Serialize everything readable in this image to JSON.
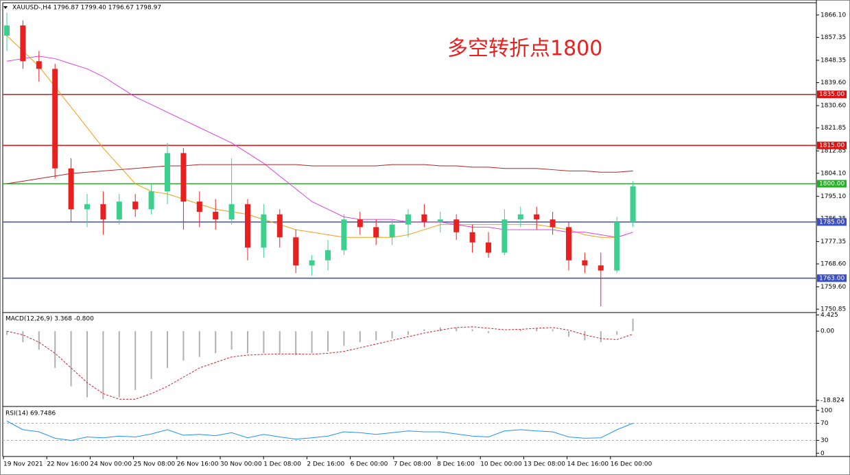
{
  "chart_data": [
    {
      "type": "candlestick",
      "header": "XAUUSD-,H4  1796.87 1799.40 1796.67 1798.97",
      "annotation": "多空转折点1800",
      "open": [
        1858,
        1862,
        1848,
        1845,
        1806,
        1790,
        1792,
        1786,
        1793,
        1790,
        1797,
        1812,
        1793,
        1789,
        1786,
        1792,
        1775,
        1788,
        1779,
        1768,
        1770,
        1774,
        1786,
        1783,
        1779,
        1784,
        1788,
        1785,
        1786,
        1781,
        1777,
        1773,
        1786,
        1788,
        1786,
        1783,
        1770,
        1768,
        1766,
        1785
      ],
      "high": [
        1867,
        1864,
        1852,
        1847,
        1810,
        1796,
        1797,
        1796,
        1796,
        1800,
        1816,
        1814,
        1797,
        1794,
        1810,
        1794,
        1792,
        1790,
        1782,
        1772,
        1778,
        1788,
        1789,
        1786,
        1786,
        1790,
        1792,
        1789,
        1788,
        1784,
        1781,
        1790,
        1791,
        1791,
        1789,
        1785,
        1773,
        1773,
        1787,
        1801
      ],
      "low": [
        1852,
        1845,
        1840,
        1802,
        1785,
        1783,
        1780,
        1784,
        1787,
        1788,
        1792,
        1782,
        1783,
        1782,
        1784,
        1770,
        1771,
        1775,
        1765,
        1764,
        1766,
        1772,
        1780,
        1776,
        1776,
        1779,
        1783,
        1781,
        1778,
        1773,
        1771,
        1772,
        1783,
        1782,
        1780,
        1766,
        1765,
        1752,
        1765,
        1783
      ],
      "close": [
        1862,
        1848,
        1845,
        1806,
        1790,
        1792,
        1786,
        1793,
        1790,
        1797,
        1812,
        1793,
        1789,
        1786,
        1792,
        1775,
        1788,
        1779,
        1768,
        1770,
        1774,
        1786,
        1783,
        1779,
        1784,
        1788,
        1785,
        1786,
        1781,
        1777,
        1773,
        1786,
        1788,
        1786,
        1783,
        1770,
        1768,
        1766,
        1785,
        1799
      ],
      "up_color": "#3ccf8e",
      "down_color": "#e8201f",
      "series": [
        {
          "color": "#f39c12",
          "values": [
            1858,
            1852,
            1846,
            1838,
            1830,
            1822,
            1814,
            1807,
            1800,
            1797,
            1796,
            1794,
            1792,
            1790,
            1789,
            1788,
            1786,
            1784,
            1782,
            1781,
            1780,
            1779,
            1779,
            1779,
            1779,
            1780,
            1782,
            1784,
            1784,
            1784,
            1784,
            1784,
            1784,
            1784,
            1783,
            1782,
            1780,
            1779,
            1779,
            1781
          ]
        },
        {
          "color": "#e040e0",
          "values": [
            1848,
            1849,
            1850,
            1849,
            1847,
            1845,
            1842,
            1838,
            1834,
            1831,
            1828,
            1825,
            1822,
            1819,
            1816,
            1812,
            1808,
            1803,
            1798,
            1793,
            1790,
            1787,
            1786,
            1786,
            1786,
            1785,
            1785,
            1785,
            1784,
            1783,
            1783,
            1782,
            1782,
            1782,
            1782,
            1781,
            1781,
            1780,
            1779,
            1781
          ]
        },
        {
          "color": "#b22222",
          "values": [
            1800,
            1801,
            1802,
            1803,
            1804,
            1804.5,
            1805,
            1805.5,
            1806,
            1806.5,
            1807,
            1807,
            1807.5,
            1807.5,
            1807.5,
            1807.5,
            1807.5,
            1807.5,
            1807.5,
            1807,
            1807,
            1807,
            1807,
            1807,
            1807.5,
            1807.5,
            1807.5,
            1807,
            1807,
            1806.5,
            1806.5,
            1806,
            1806,
            1806,
            1805.5,
            1805,
            1805,
            1804.5,
            1804.5,
            1805
          ]
        }
      ],
      "levels": [
        {
          "value": 1835,
          "label": "1835.00",
          "color": "#e01010"
        },
        {
          "value": 1815,
          "label": "1815.00",
          "color": "#e01010"
        },
        {
          "value": 1800,
          "label": "1800.00",
          "color": "#22b322"
        },
        {
          "value": 1785,
          "label": "1785.00",
          "color": "#3a4fc4"
        },
        {
          "value": 1763,
          "label": "1763.00",
          "color": "#3a4fc4"
        }
      ],
      "ylim": [
        1749.8,
        1870.9
      ],
      "yticks": [
        {
          "value": 1866.1,
          "label": "1866.10"
        },
        1857.35,
        1848.35,
        {
          "value": 1839.6,
          "label": "1839.60"
        },
        {
          "value": 1830.6,
          "label": "1830.60"
        },
        1821.85,
        1812.85,
        {
          "value": 1804.1,
          "label": "1804.10"
        },
        {
          "value": 1795.1,
          "label": "1795.10"
        },
        1786.35,
        1777.35,
        {
          "value": 1768.6,
          "label": "1768.60"
        },
        {
          "value": 1759.6,
          "label": "1759.60"
        },
        1750.85
      ],
      "time_labels": [
        "19 Nov 2021",
        "22 Nov 16:00",
        "24 Nov 00:00",
        "25 Nov 08:00",
        "26 Nov 16:00",
        "30 Nov 00:00",
        "1 Dec 08:00",
        "2 Dec 16:00",
        "6 Dec 00:00",
        "7 Dec 08:00",
        "8 Dec 16:00",
        "10 Dec 00:00",
        "13 Dec 08:00",
        "14 Dec 16:00",
        "16 Dec 00:00"
      ]
    },
    {
      "type": "macd",
      "label": "MACD(12,26,9) 3.368 -0.800",
      "values": [
        -1,
        -3,
        -5,
        -10,
        -15,
        -18,
        -18.5,
        -18,
        -16,
        -13,
        -10,
        -8,
        -7,
        -6,
        -5,
        -6,
        -6,
        -6,
        -6.5,
        -6,
        -5.5,
        -4,
        -3,
        -2.5,
        -2,
        -1,
        0.5,
        1,
        1,
        0.5,
        -0.5,
        0,
        0.5,
        0.8,
        0.5,
        -1.5,
        -2.5,
        -3,
        -1,
        3.4
      ],
      "color": "#b0b0b0",
      "signal": [
        0,
        -1,
        -3,
        -6,
        -10,
        -14,
        -17,
        -18.5,
        -18.5,
        -17,
        -15,
        -12.5,
        -10,
        -8.5,
        -7,
        -6.5,
        -6.3,
        -6.2,
        -6.2,
        -6.3,
        -6,
        -5.5,
        -4.5,
        -3.5,
        -2.5,
        -1.5,
        -0.5,
        0.3,
        1,
        1.2,
        0.8,
        0.4,
        0.5,
        0.8,
        1,
        0.3,
        -1,
        -2,
        -2.3,
        -0.8
      ],
      "signal_color": "#d0202a",
      "ylim": [
        -20.3,
        4.7
      ],
      "yticks": [
        4.425,
        {
          "value": 0,
          "label": "0.00"
        },
        -18.824
      ]
    },
    {
      "type": "line",
      "label": "RSI(14) 69.7486",
      "color": "#1e90ff",
      "values": [
        75,
        55,
        50,
        35,
        30,
        38,
        36,
        40,
        38,
        45,
        55,
        42,
        44,
        41,
        48,
        36,
        44,
        38,
        33,
        36,
        40,
        50,
        48,
        44,
        48,
        52,
        50,
        50,
        45,
        40,
        38,
        52,
        55,
        52,
        50,
        38,
        35,
        36,
        55,
        70
      ],
      "ylim": [
        -6,
        106
      ],
      "yticks": [
        100,
        70,
        30,
        0
      ]
    }
  ]
}
